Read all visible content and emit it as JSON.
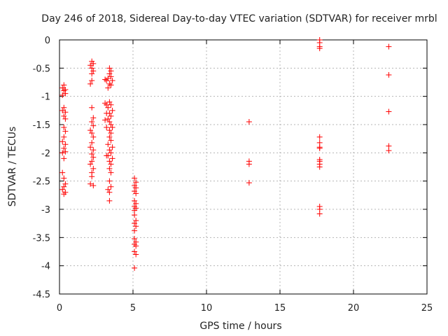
{
  "chart_data": {
    "type": "scatter",
    "title": "Day 246 of 2018, Sidereal Day-to-day VTEC variation (SDTVAR) for receiver mrbl",
    "xlabel": "GPS time / hours",
    "ylabel": "SDTVAR / TECUs",
    "xlim": [
      0,
      25
    ],
    "ylim": [
      -4.5,
      0
    ],
    "xticks": [
      0,
      5,
      10,
      15,
      20,
      25
    ],
    "xtick_labels": [
      "0",
      "5",
      "10",
      "15",
      "20",
      "25"
    ],
    "yticks": [
      0,
      -0.5,
      -1,
      -1.5,
      -2,
      -2.5,
      -3,
      -3.5,
      -4,
      -4.5
    ],
    "ytick_labels": [
      "0",
      "-0.5",
      "-1",
      "-1.5",
      "-2",
      "-2.5",
      "-3",
      "-3.5",
      "-4",
      "-4.5"
    ],
    "grid": true,
    "marker": "plus",
    "color": "#ff0000",
    "series": [
      {
        "name": "SDTVAR",
        "points": [
          [
            0.2,
            -0.85
          ],
          [
            0.3,
            -0.9
          ],
          [
            0.4,
            -0.95
          ],
          [
            0.3,
            -0.8
          ],
          [
            0.4,
            -0.88
          ],
          [
            0.2,
            -0.98
          ],
          [
            0.3,
            -1.2
          ],
          [
            0.4,
            -1.28
          ],
          [
            0.3,
            -1.35
          ],
          [
            0.4,
            -1.4
          ],
          [
            0.2,
            -1.25
          ],
          [
            0.3,
            -1.55
          ],
          [
            0.4,
            -1.62
          ],
          [
            0.3,
            -1.72
          ],
          [
            0.2,
            -1.8
          ],
          [
            0.4,
            -1.85
          ],
          [
            0.3,
            -1.92
          ],
          [
            0.4,
            -1.98
          ],
          [
            0.2,
            -2.0
          ],
          [
            0.3,
            -2.1
          ],
          [
            0.2,
            -2.35
          ],
          [
            0.3,
            -2.45
          ],
          [
            0.4,
            -2.55
          ],
          [
            0.3,
            -2.6
          ],
          [
            0.2,
            -2.65
          ],
          [
            0.4,
            -2.7
          ],
          [
            0.3,
            -2.73
          ],
          [
            2.2,
            -0.38
          ],
          [
            2.3,
            -0.42
          ],
          [
            2.2,
            -0.5
          ],
          [
            2.3,
            -0.55
          ],
          [
            2.2,
            -0.6
          ],
          [
            2.1,
            -0.45
          ],
          [
            2.1,
            -0.78
          ],
          [
            2.2,
            -0.72
          ],
          [
            2.2,
            -1.2
          ],
          [
            2.3,
            -1.38
          ],
          [
            2.2,
            -1.45
          ],
          [
            2.3,
            -1.52
          ],
          [
            2.1,
            -1.6
          ],
          [
            2.2,
            -1.65
          ],
          [
            2.3,
            -1.72
          ],
          [
            2.2,
            -1.82
          ],
          [
            2.1,
            -1.9
          ],
          [
            2.3,
            -1.95
          ],
          [
            2.2,
            -2.02
          ],
          [
            2.3,
            -2.08
          ],
          [
            2.2,
            -2.15
          ],
          [
            2.1,
            -2.2
          ],
          [
            2.3,
            -2.28
          ],
          [
            2.2,
            -2.35
          ],
          [
            2.2,
            -2.42
          ],
          [
            2.1,
            -2.55
          ],
          [
            2.3,
            -2.58
          ],
          [
            3.1,
            -0.7
          ],
          [
            3.2,
            -0.72
          ],
          [
            3.4,
            -0.5
          ],
          [
            3.5,
            -0.55
          ],
          [
            3.4,
            -0.6
          ],
          [
            3.5,
            -0.65
          ],
          [
            3.3,
            -0.68
          ],
          [
            3.6,
            -0.72
          ],
          [
            3.4,
            -0.78
          ],
          [
            3.5,
            -0.8
          ],
          [
            3.3,
            -0.85
          ],
          [
            3.1,
            -1.12
          ],
          [
            3.2,
            -1.15
          ],
          [
            3.4,
            -1.1
          ],
          [
            3.5,
            -1.15
          ],
          [
            3.3,
            -1.2
          ],
          [
            3.6,
            -1.25
          ],
          [
            3.4,
            -1.3
          ],
          [
            3.5,
            -1.35
          ],
          [
            3.3,
            -1.4
          ],
          [
            3.4,
            -1.45
          ],
          [
            3.5,
            -1.5
          ],
          [
            3.6,
            -1.55
          ],
          [
            3.4,
            -1.6
          ],
          [
            3.5,
            -1.65
          ],
          [
            3.4,
            -1.72
          ],
          [
            3.5,
            -1.78
          ],
          [
            3.3,
            -1.85
          ],
          [
            3.6,
            -1.9
          ],
          [
            3.4,
            -1.95
          ],
          [
            3.5,
            -2.0
          ],
          [
            3.3,
            -2.05
          ],
          [
            3.6,
            -2.1
          ],
          [
            3.4,
            -2.15
          ],
          [
            3.5,
            -2.2
          ],
          [
            3.4,
            -2.28
          ],
          [
            3.5,
            -2.35
          ],
          [
            3.4,
            -2.5
          ],
          [
            3.5,
            -2.6
          ],
          [
            3.3,
            -2.65
          ],
          [
            3.4,
            -2.7
          ],
          [
            3.4,
            -2.85
          ],
          [
            3.2,
            -1.3
          ],
          [
            3.1,
            -1.42
          ],
          [
            3.2,
            -1.55
          ],
          [
            3.2,
            -2.05
          ],
          [
            5.1,
            -2.45
          ],
          [
            5.2,
            -2.52
          ],
          [
            5.1,
            -2.58
          ],
          [
            5.2,
            -2.62
          ],
          [
            5.1,
            -2.68
          ],
          [
            5.2,
            -2.72
          ],
          [
            5.1,
            -2.85
          ],
          [
            5.2,
            -2.9
          ],
          [
            5.1,
            -2.95
          ],
          [
            5.2,
            -2.98
          ],
          [
            5.1,
            -3.02
          ],
          [
            5.1,
            -3.1
          ],
          [
            5.2,
            -3.2
          ],
          [
            5.1,
            -3.25
          ],
          [
            5.2,
            -3.3
          ],
          [
            5.1,
            -3.38
          ],
          [
            5.1,
            -3.52
          ],
          [
            5.2,
            -3.58
          ],
          [
            5.1,
            -3.62
          ],
          [
            5.2,
            -3.65
          ],
          [
            5.1,
            -3.75
          ],
          [
            5.2,
            -3.8
          ],
          [
            5.1,
            -4.04
          ],
          [
            12.9,
            -1.45
          ],
          [
            12.9,
            -2.15
          ],
          [
            12.9,
            -2.2
          ],
          [
            12.9,
            -2.53
          ],
          [
            17.7,
            0.0
          ],
          [
            17.7,
            -0.05
          ],
          [
            17.7,
            -0.12
          ],
          [
            17.7,
            -0.15
          ],
          [
            17.7,
            -1.72
          ],
          [
            17.7,
            -1.82
          ],
          [
            17.7,
            -1.9
          ],
          [
            17.7,
            -1.92
          ],
          [
            17.7,
            -2.12
          ],
          [
            17.7,
            -2.15
          ],
          [
            17.7,
            -2.2
          ],
          [
            17.7,
            -2.25
          ],
          [
            17.7,
            -2.95
          ],
          [
            17.7,
            -3.0
          ],
          [
            17.7,
            -3.08
          ],
          [
            22.4,
            -0.12
          ],
          [
            22.4,
            -0.62
          ],
          [
            22.4,
            -1.27
          ],
          [
            22.4,
            -1.88
          ],
          [
            22.4,
            -1.96
          ]
        ]
      }
    ]
  }
}
